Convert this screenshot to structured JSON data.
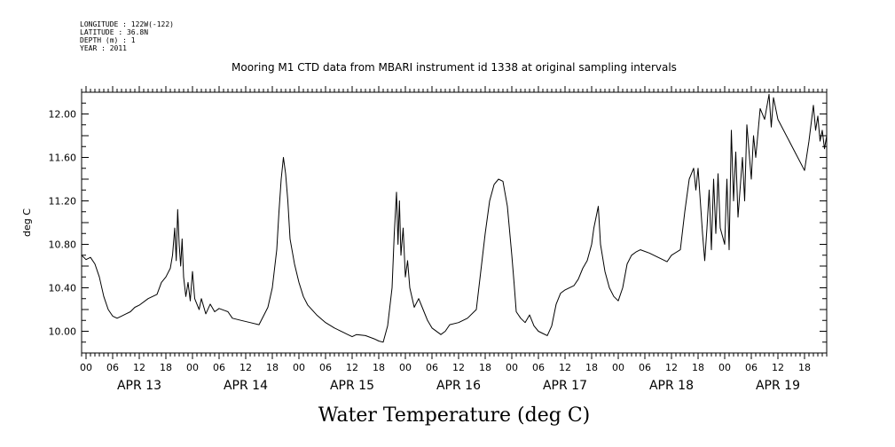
{
  "header": {
    "meta_lines": [
      "LONGITUDE : 122W(-122)",
      "LATITUDE : 36.8N",
      "DEPTH (m) : 1",
      "YEAR : 2011"
    ],
    "title": "Mooring M1 CTD data from MBARI instrument id 1338 at original sampling intervals"
  },
  "chart_data": {
    "type": "line",
    "title": "Mooring M1 CTD data from MBARI instrument id 1338 at original sampling intervals",
    "xlabel": "Water Temperature (deg C)",
    "ylabel": "deg C",
    "ylim": [
      9.8,
      12.2
    ],
    "yticks": [
      10.0,
      10.4,
      10.8,
      11.2,
      11.6,
      12.0
    ],
    "ytick_labels": [
      "10.00",
      "10.40",
      "10.80",
      "11.20",
      "11.60",
      "12.00"
    ],
    "xlim": [
      "2011-04-12T23:00",
      "2011-04-19T23:00"
    ],
    "hour_tick_labels": [
      "00",
      "06",
      "12",
      "18",
      "00",
      "06",
      "12",
      "18",
      "00",
      "06",
      "12",
      "18",
      "00",
      "06",
      "12",
      "18",
      "00",
      "06",
      "12",
      "18",
      "00",
      "06",
      "12",
      "18",
      "00",
      "06",
      "12",
      "18"
    ],
    "day_labels": [
      "APR 13",
      "APR 14",
      "APR 15",
      "APR 16",
      "APR 17",
      "APR 18",
      "APR 19"
    ],
    "grid": false,
    "series": [
      {
        "color": "#000000",
        "points": [
          [
            "2011-04-12T23:00",
            10.7
          ],
          [
            "2011-04-13T00:00",
            10.66
          ],
          [
            "2011-04-13T01:00",
            10.68
          ],
          [
            "2011-04-13T02:00",
            10.62
          ],
          [
            "2011-04-13T03:00",
            10.5
          ],
          [
            "2011-04-13T04:00",
            10.32
          ],
          [
            "2011-04-13T05:00",
            10.2
          ],
          [
            "2011-04-13T06:00",
            10.14
          ],
          [
            "2011-04-13T07:00",
            10.12
          ],
          [
            "2011-04-13T08:00",
            10.14
          ],
          [
            "2011-04-13T09:00",
            10.16
          ],
          [
            "2011-04-13T10:00",
            10.18
          ],
          [
            "2011-04-13T11:00",
            10.22
          ],
          [
            "2011-04-13T12:00",
            10.24
          ],
          [
            "2011-04-13T14:00",
            10.3
          ],
          [
            "2011-04-13T16:00",
            10.34
          ],
          [
            "2011-04-13T17:00",
            10.45
          ],
          [
            "2011-04-13T18:00",
            10.5
          ],
          [
            "2011-04-13T19:00",
            10.58
          ],
          [
            "2011-04-13T19:30",
            10.7
          ],
          [
            "2011-04-13T20:00",
            10.95
          ],
          [
            "2011-04-13T20:20",
            10.65
          ],
          [
            "2011-04-13T20:40",
            11.12
          ],
          [
            "2011-04-13T21:00",
            10.8
          ],
          [
            "2011-04-13T21:20",
            10.6
          ],
          [
            "2011-04-13T21:40",
            10.85
          ],
          [
            "2011-04-13T22:00",
            10.5
          ],
          [
            "2011-04-13T22:30",
            10.32
          ],
          [
            "2011-04-13T23:00",
            10.45
          ],
          [
            "2011-04-13T23:30",
            10.28
          ],
          [
            "2011-04-14T00:00",
            10.55
          ],
          [
            "2011-04-14T00:30",
            10.3
          ],
          [
            "2011-04-14T01:00",
            10.25
          ],
          [
            "2011-04-14T01:30",
            10.2
          ],
          [
            "2011-04-14T02:00",
            10.3
          ],
          [
            "2011-04-14T03:00",
            10.16
          ],
          [
            "2011-04-14T04:00",
            10.25
          ],
          [
            "2011-04-14T05:00",
            10.18
          ],
          [
            "2011-04-14T06:00",
            10.21
          ],
          [
            "2011-04-14T08:00",
            10.18
          ],
          [
            "2011-04-14T09:00",
            10.12
          ],
          [
            "2011-04-14T11:00",
            10.1
          ],
          [
            "2011-04-14T13:00",
            10.08
          ],
          [
            "2011-04-14T15:00",
            10.06
          ],
          [
            "2011-04-14T16:00",
            10.14
          ],
          [
            "2011-04-14T17:00",
            10.22
          ],
          [
            "2011-04-14T18:00",
            10.4
          ],
          [
            "2011-04-14T19:00",
            10.75
          ],
          [
            "2011-04-14T19:30",
            11.1
          ],
          [
            "2011-04-14T20:00",
            11.4
          ],
          [
            "2011-04-14T20:30",
            11.6
          ],
          [
            "2011-04-14T21:00",
            11.45
          ],
          [
            "2011-04-14T21:30",
            11.2
          ],
          [
            "2011-04-14T22:00",
            10.85
          ],
          [
            "2011-04-14T23:00",
            10.62
          ],
          [
            "2011-04-15T00:00",
            10.45
          ],
          [
            "2011-04-15T01:00",
            10.32
          ],
          [
            "2011-04-15T02:00",
            10.24
          ],
          [
            "2011-04-15T04:00",
            10.15
          ],
          [
            "2011-04-15T06:00",
            10.08
          ],
          [
            "2011-04-15T08:00",
            10.03
          ],
          [
            "2011-04-15T10:00",
            9.99
          ],
          [
            "2011-04-15T11:00",
            9.97
          ],
          [
            "2011-04-15T12:00",
            9.95
          ],
          [
            "2011-04-15T13:00",
            9.97
          ],
          [
            "2011-04-15T15:00",
            9.96
          ],
          [
            "2011-04-15T17:00",
            9.93
          ],
          [
            "2011-04-15T18:00",
            9.91
          ],
          [
            "2011-04-15T19:00",
            9.9
          ],
          [
            "2011-04-15T20:00",
            10.05
          ],
          [
            "2011-04-15T21:00",
            10.4
          ],
          [
            "2011-04-15T21:30",
            10.9
          ],
          [
            "2011-04-15T22:00",
            11.28
          ],
          [
            "2011-04-15T22:20",
            10.8
          ],
          [
            "2011-04-15T22:40",
            11.2
          ],
          [
            "2011-04-15T23:00",
            10.7
          ],
          [
            "2011-04-15T23:30",
            10.95
          ],
          [
            "2011-04-16T00:00",
            10.5
          ],
          [
            "2011-04-16T00:30",
            10.65
          ],
          [
            "2011-04-16T01:00",
            10.4
          ],
          [
            "2011-04-16T02:00",
            10.22
          ],
          [
            "2011-04-16T03:00",
            10.3
          ],
          [
            "2011-04-16T04:00",
            10.2
          ],
          [
            "2011-04-16T05:00",
            10.1
          ],
          [
            "2011-04-16T06:00",
            10.03
          ],
          [
            "2011-04-16T08:00",
            9.97
          ],
          [
            "2011-04-16T09:00",
            10.0
          ],
          [
            "2011-04-16T10:00",
            10.06
          ],
          [
            "2011-04-16T12:00",
            10.08
          ],
          [
            "2011-04-16T14:00",
            10.12
          ],
          [
            "2011-04-16T16:00",
            10.2
          ],
          [
            "2011-04-16T17:00",
            10.55
          ],
          [
            "2011-04-16T18:00",
            10.9
          ],
          [
            "2011-04-16T19:00",
            11.2
          ],
          [
            "2011-04-16T20:00",
            11.35
          ],
          [
            "2011-04-16T21:00",
            11.4
          ],
          [
            "2011-04-16T22:00",
            11.38
          ],
          [
            "2011-04-16T23:00",
            11.15
          ],
          [
            "2011-04-17T00:00",
            10.7
          ],
          [
            "2011-04-17T00:30",
            10.45
          ],
          [
            "2011-04-17T01:00",
            10.18
          ],
          [
            "2011-04-17T02:00",
            10.12
          ],
          [
            "2011-04-17T03:00",
            10.08
          ],
          [
            "2011-04-17T04:00",
            10.15
          ],
          [
            "2011-04-17T05:00",
            10.05
          ],
          [
            "2011-04-17T06:00",
            10.0
          ],
          [
            "2011-04-17T07:00",
            9.98
          ],
          [
            "2011-04-17T08:00",
            9.96
          ],
          [
            "2011-04-17T09:00",
            10.05
          ],
          [
            "2011-04-17T10:00",
            10.25
          ],
          [
            "2011-04-17T11:00",
            10.35
          ],
          [
            "2011-04-17T12:00",
            10.38
          ],
          [
            "2011-04-17T14:00",
            10.42
          ],
          [
            "2011-04-17T15:00",
            10.48
          ],
          [
            "2011-04-17T16:00",
            10.58
          ],
          [
            "2011-04-17T17:00",
            10.65
          ],
          [
            "2011-04-17T18:00",
            10.8
          ],
          [
            "2011-04-17T18:30",
            10.95
          ],
          [
            "2011-04-17T19:00",
            11.05
          ],
          [
            "2011-04-17T19:30",
            11.15
          ],
          [
            "2011-04-17T20:00",
            10.8
          ],
          [
            "2011-04-17T21:00",
            10.55
          ],
          [
            "2011-04-17T22:00",
            10.4
          ],
          [
            "2011-04-17T23:00",
            10.32
          ],
          [
            "2011-04-18T00:00",
            10.28
          ],
          [
            "2011-04-18T01:00",
            10.4
          ],
          [
            "2011-04-18T02:00",
            10.62
          ],
          [
            "2011-04-18T03:00",
            10.7
          ],
          [
            "2011-04-18T04:00",
            10.73
          ],
          [
            "2011-04-18T05:00",
            10.75
          ],
          [
            "2011-04-18T07:00",
            10.72
          ],
          [
            "2011-04-18T09:00",
            10.68
          ],
          [
            "2011-04-18T11:00",
            10.64
          ],
          [
            "2011-04-18T12:00",
            10.7
          ],
          [
            "2011-04-18T14:00",
            10.75
          ],
          [
            "2011-04-18T15:00",
            11.1
          ],
          [
            "2011-04-18T16:00",
            11.4
          ],
          [
            "2011-04-18T17:00",
            11.5
          ],
          [
            "2011-04-18T17:30",
            11.3
          ],
          [
            "2011-04-18T18:00",
            11.5
          ],
          [
            "2011-04-18T19:00",
            10.9
          ],
          [
            "2011-04-18T19:30",
            10.65
          ],
          [
            "2011-04-18T20:00",
            10.95
          ],
          [
            "2011-04-18T20:30",
            11.3
          ],
          [
            "2011-04-18T21:00",
            10.75
          ],
          [
            "2011-04-18T21:30",
            11.4
          ],
          [
            "2011-04-18T22:00",
            10.9
          ],
          [
            "2011-04-18T22:30",
            11.45
          ],
          [
            "2011-04-18T23:00",
            10.95
          ],
          [
            "2011-04-19T00:00",
            10.8
          ],
          [
            "2011-04-19T00:30",
            11.4
          ],
          [
            "2011-04-19T01:00",
            10.75
          ],
          [
            "2011-04-19T01:30",
            11.85
          ],
          [
            "2011-04-19T02:00",
            11.2
          ],
          [
            "2011-04-19T02:30",
            11.65
          ],
          [
            "2011-04-19T03:00",
            11.05
          ],
          [
            "2011-04-19T04:00",
            11.6
          ],
          [
            "2011-04-19T04:30",
            11.2
          ],
          [
            "2011-04-19T05:00",
            11.9
          ],
          [
            "2011-04-19T06:00",
            11.4
          ],
          [
            "2011-04-19T06:30",
            11.8
          ],
          [
            "2011-04-19T07:00",
            11.6
          ],
          [
            "2011-04-19T08:00",
            12.05
          ],
          [
            "2011-04-19T09:00",
            11.95
          ],
          [
            "2011-04-19T10:00",
            12.18
          ],
          [
            "2011-04-19T10:30",
            11.88
          ],
          [
            "2011-04-19T11:00",
            12.15
          ],
          [
            "2011-04-19T12:00",
            11.95
          ],
          [
            "2011-04-19T18:00",
            11.48
          ],
          [
            "2011-04-19T19:00",
            11.75
          ],
          [
            "2011-04-19T20:00",
            12.08
          ],
          [
            "2011-04-19T20:30",
            11.85
          ],
          [
            "2011-04-19T21:00",
            11.98
          ],
          [
            "2011-04-19T21:30",
            11.75
          ],
          [
            "2011-04-19T22:00",
            11.85
          ],
          [
            "2011-04-19T22:30",
            11.68
          ],
          [
            "2011-04-19T23:00",
            11.8
          ]
        ]
      }
    ]
  }
}
